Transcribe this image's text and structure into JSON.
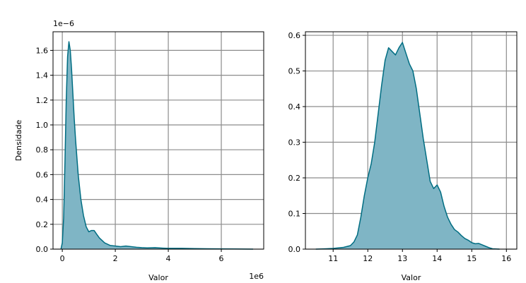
{
  "colors": {
    "fill": "#7fb5c5",
    "line": "#006d82",
    "grid": "#8c8c8c",
    "axis": "#000000"
  },
  "chart_data": [
    {
      "type": "area",
      "xlabel": "Valor",
      "ylabel": "Densidade",
      "x_offset_label": "1e6",
      "y_offset_label": "1e−6",
      "xlim": [
        -0.35,
        7.6
      ],
      "ylim": [
        0,
        1.75
      ],
      "xticks": [
        0,
        2,
        4,
        6
      ],
      "yticks": [
        0.0,
        0.2,
        0.4,
        0.6,
        0.8,
        1.0,
        1.2,
        1.4,
        1.6
      ],
      "ytick_labels": [
        "0.0",
        "0.2",
        "0.4",
        "0.6",
        "0.8",
        "1.0",
        "1.2",
        "1.4",
        "1.6"
      ],
      "grid": true,
      "x_units": "x 1e6",
      "y_units": "x 1e-6",
      "x": [
        -0.05,
        0.0,
        0.05,
        0.1,
        0.15,
        0.2,
        0.25,
        0.3,
        0.35,
        0.4,
        0.45,
        0.5,
        0.6,
        0.7,
        0.8,
        0.9,
        1.0,
        1.1,
        1.2,
        1.3,
        1.4,
        1.6,
        1.8,
        2.0,
        2.2,
        2.4,
        2.6,
        2.8,
        3.0,
        3.2,
        3.5,
        3.8,
        4.0,
        4.5,
        5.0,
        5.5,
        6.0,
        6.5,
        7.2
      ],
      "y": [
        0.0,
        0.05,
        0.25,
        0.7,
        1.2,
        1.55,
        1.67,
        1.6,
        1.45,
        1.25,
        1.05,
        0.88,
        0.6,
        0.4,
        0.27,
        0.18,
        0.14,
        0.15,
        0.15,
        0.12,
        0.09,
        0.05,
        0.03,
        0.025,
        0.02,
        0.025,
        0.02,
        0.015,
        0.012,
        0.01,
        0.012,
        0.008,
        0.006,
        0.006,
        0.004,
        0.003,
        0.002,
        0.001,
        0.0
      ]
    },
    {
      "type": "area",
      "xlabel": "Valor",
      "ylabel": "",
      "xlim": [
        10.2,
        16.3
      ],
      "ylim": [
        0,
        0.61
      ],
      "xticks": [
        11,
        12,
        13,
        14,
        15,
        16
      ],
      "yticks": [
        0.0,
        0.1,
        0.2,
        0.3,
        0.4,
        0.5,
        0.6
      ],
      "ytick_labels": [
        "0.0",
        "0.1",
        "0.2",
        "0.3",
        "0.4",
        "0.5",
        "0.6"
      ],
      "grid": true,
      "x": [
        10.5,
        10.8,
        11.0,
        11.3,
        11.5,
        11.6,
        11.7,
        11.8,
        11.9,
        12.0,
        12.1,
        12.2,
        12.3,
        12.4,
        12.5,
        12.6,
        12.7,
        12.8,
        12.9,
        13.0,
        13.1,
        13.2,
        13.3,
        13.4,
        13.5,
        13.6,
        13.7,
        13.8,
        13.9,
        14.0,
        14.1,
        14.2,
        14.3,
        14.4,
        14.5,
        14.6,
        14.7,
        14.8,
        14.9,
        15.0,
        15.1,
        15.2,
        15.3,
        15.4,
        15.5,
        15.6,
        15.8
      ],
      "y": [
        0.0,
        0.001,
        0.002,
        0.005,
        0.01,
        0.02,
        0.04,
        0.09,
        0.15,
        0.2,
        0.24,
        0.3,
        0.38,
        0.46,
        0.53,
        0.565,
        0.555,
        0.545,
        0.565,
        0.58,
        0.55,
        0.52,
        0.5,
        0.45,
        0.38,
        0.31,
        0.25,
        0.19,
        0.17,
        0.18,
        0.16,
        0.12,
        0.09,
        0.07,
        0.055,
        0.048,
        0.038,
        0.03,
        0.025,
        0.018,
        0.015,
        0.016,
        0.012,
        0.008,
        0.004,
        0.001,
        0.0
      ]
    }
  ]
}
